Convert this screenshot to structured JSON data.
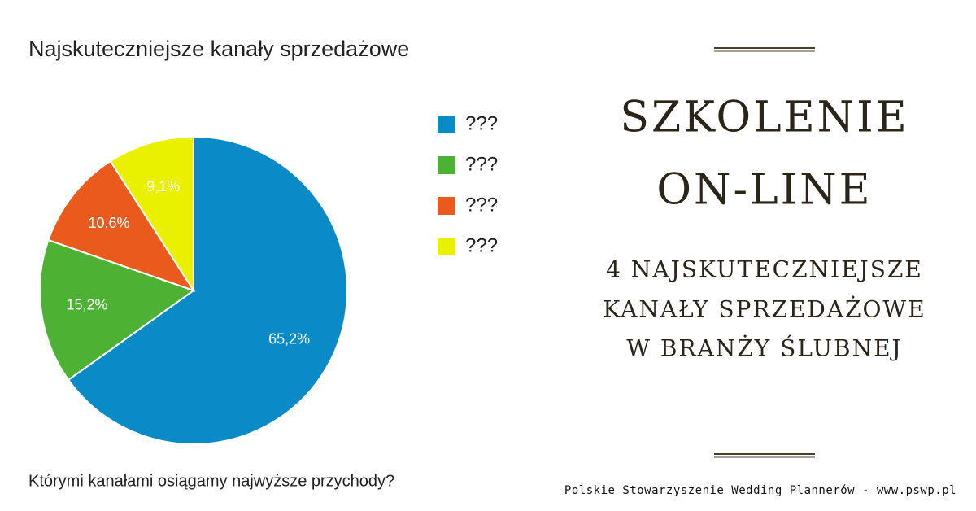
{
  "chart_data": {
    "type": "pie",
    "title": "Najskuteczniejsze kanały sprzedażowe",
    "subtitle": "Którymi kanałami osiągamy najwyższe przychody?",
    "categories": [
      "???",
      "???",
      "???",
      "???"
    ],
    "values": [
      65.2,
      15.2,
      10.6,
      9.1
    ],
    "value_labels": [
      "65,2%",
      "15,2%",
      "10,6%",
      "9,1%"
    ],
    "colors": [
      "#0a8bc8",
      "#4db133",
      "#ea5a1d",
      "#e9f000"
    ]
  },
  "panel": {
    "heading": [
      "SZKOLENIE",
      "ON-LINE"
    ],
    "subheading": [
      "4 NAJSKUTECZNIEJSZE",
      "KANAŁY SPRZEDAŻOWE",
      "W BRANŻY ŚLUBNEJ"
    ],
    "footer": "Polskie Stowarzyszenie Wedding Plannerów - www.pswp.pl"
  }
}
